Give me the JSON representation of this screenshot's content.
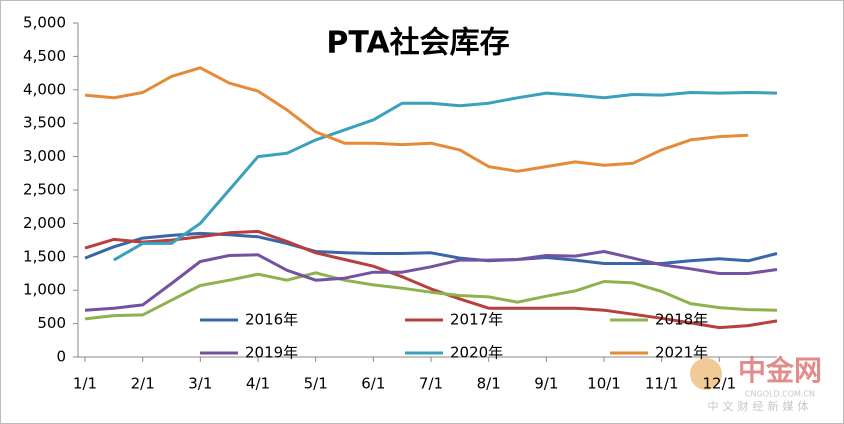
{
  "chart_data": {
    "type": "line",
    "title": "PTA社会库存",
    "x": [
      1,
      1.5,
      2,
      2.5,
      3,
      3.5,
      4,
      4.5,
      5,
      5.5,
      6,
      6.5,
      7,
      7.5,
      8,
      8.5,
      9,
      9.5,
      10,
      10.5,
      11,
      11.5,
      12,
      12.5,
      13
    ],
    "xlim": [
      1,
      13
    ],
    "xticks": [
      {
        "value": 1,
        "label": "1/1"
      },
      {
        "value": 2,
        "label": "2/1"
      },
      {
        "value": 3,
        "label": "3/1"
      },
      {
        "value": 4,
        "label": "4/1"
      },
      {
        "value": 5,
        "label": "5/1"
      },
      {
        "value": 6,
        "label": "6/1"
      },
      {
        "value": 7,
        "label": "7/1"
      },
      {
        "value": 8,
        "label": "8/1"
      },
      {
        "value": 9,
        "label": "9/1"
      },
      {
        "value": 10,
        "label": "10/1"
      },
      {
        "value": 11,
        "label": "11/1"
      },
      {
        "value": 12,
        "label": "12/1"
      }
    ],
    "ylim": [
      0,
      5000
    ],
    "yticks": [
      0,
      500,
      {
        "value": 1000,
        "label": "1,000"
      },
      {
        "value": 1500,
        "label": "1,500"
      },
      {
        "value": 2000,
        "label": "2,000"
      },
      {
        "value": 2500,
        "label": "2,500"
      },
      {
        "value": 3000,
        "label": "3,000"
      },
      {
        "value": 3500,
        "label": "3,500"
      },
      {
        "value": 4000,
        "label": "4,000"
      },
      {
        "value": 4500,
        "label": "4,500"
      },
      {
        "value": 5000,
        "label": "5,000"
      }
    ],
    "grid": false,
    "series": [
      {
        "name": "2016年",
        "color": "#3a66a8",
        "values": [
          1480,
          1650,
          1780,
          1820,
          1850,
          1830,
          1800,
          1700,
          1580,
          1560,
          1550,
          1550,
          1560,
          1480,
          1440,
          1460,
          1490,
          1450,
          1400,
          1400,
          1400,
          1440,
          1470,
          1440,
          1550
        ]
      },
      {
        "name": "2017年",
        "color": "#b7403c",
        "values": [
          1630,
          1760,
          1720,
          1750,
          1800,
          1860,
          1880,
          1730,
          1560,
          1460,
          1360,
          1200,
          1020,
          870,
          730,
          730,
          730,
          730,
          700,
          640,
          580,
          510,
          440,
          470,
          540
        ]
      },
      {
        "name": "2018年",
        "color": "#8eb24e",
        "values": [
          570,
          620,
          630,
          850,
          1070,
          1150,
          1240,
          1150,
          1260,
          1150,
          1080,
          1030,
          970,
          920,
          900,
          820,
          910,
          990,
          1130,
          1110,
          980,
          800,
          740,
          710,
          700
        ]
      },
      {
        "name": "2019年",
        "color": "#7552a0",
        "values": [
          700,
          730,
          780,
          1100,
          1430,
          1520,
          1530,
          1300,
          1150,
          1180,
          1270,
          1270,
          1350,
          1450,
          1450,
          1460,
          1520,
          1510,
          1580,
          1480,
          1380,
          1320,
          1250,
          1250,
          1310
        ]
      },
      {
        "name": "2020年",
        "color": "#3aa0bc",
        "values": [
          null,
          1450,
          1700,
          1700,
          2000,
          2500,
          3000,
          3050,
          3250,
          3400,
          3550,
          3800,
          3800,
          3760,
          3800,
          3880,
          3950,
          3920,
          3880,
          3930,
          3920,
          3960,
          3950,
          3960,
          3950
        ]
      },
      {
        "name": "2021年",
        "color": "#e58a37",
        "values": [
          3920,
          3880,
          3960,
          4200,
          4330,
          4100,
          3980,
          3700,
          3370,
          3200,
          3200,
          3180,
          3200,
          3100,
          2850,
          2780,
          2850,
          2920,
          2870,
          2900,
          3100,
          3250,
          3300,
          3320,
          null
        ]
      }
    ],
    "watermark": {
      "brand": "中金网",
      "domain": "CNGOLD.COM.CN",
      "slogan": "中文财经新媒体"
    }
  }
}
